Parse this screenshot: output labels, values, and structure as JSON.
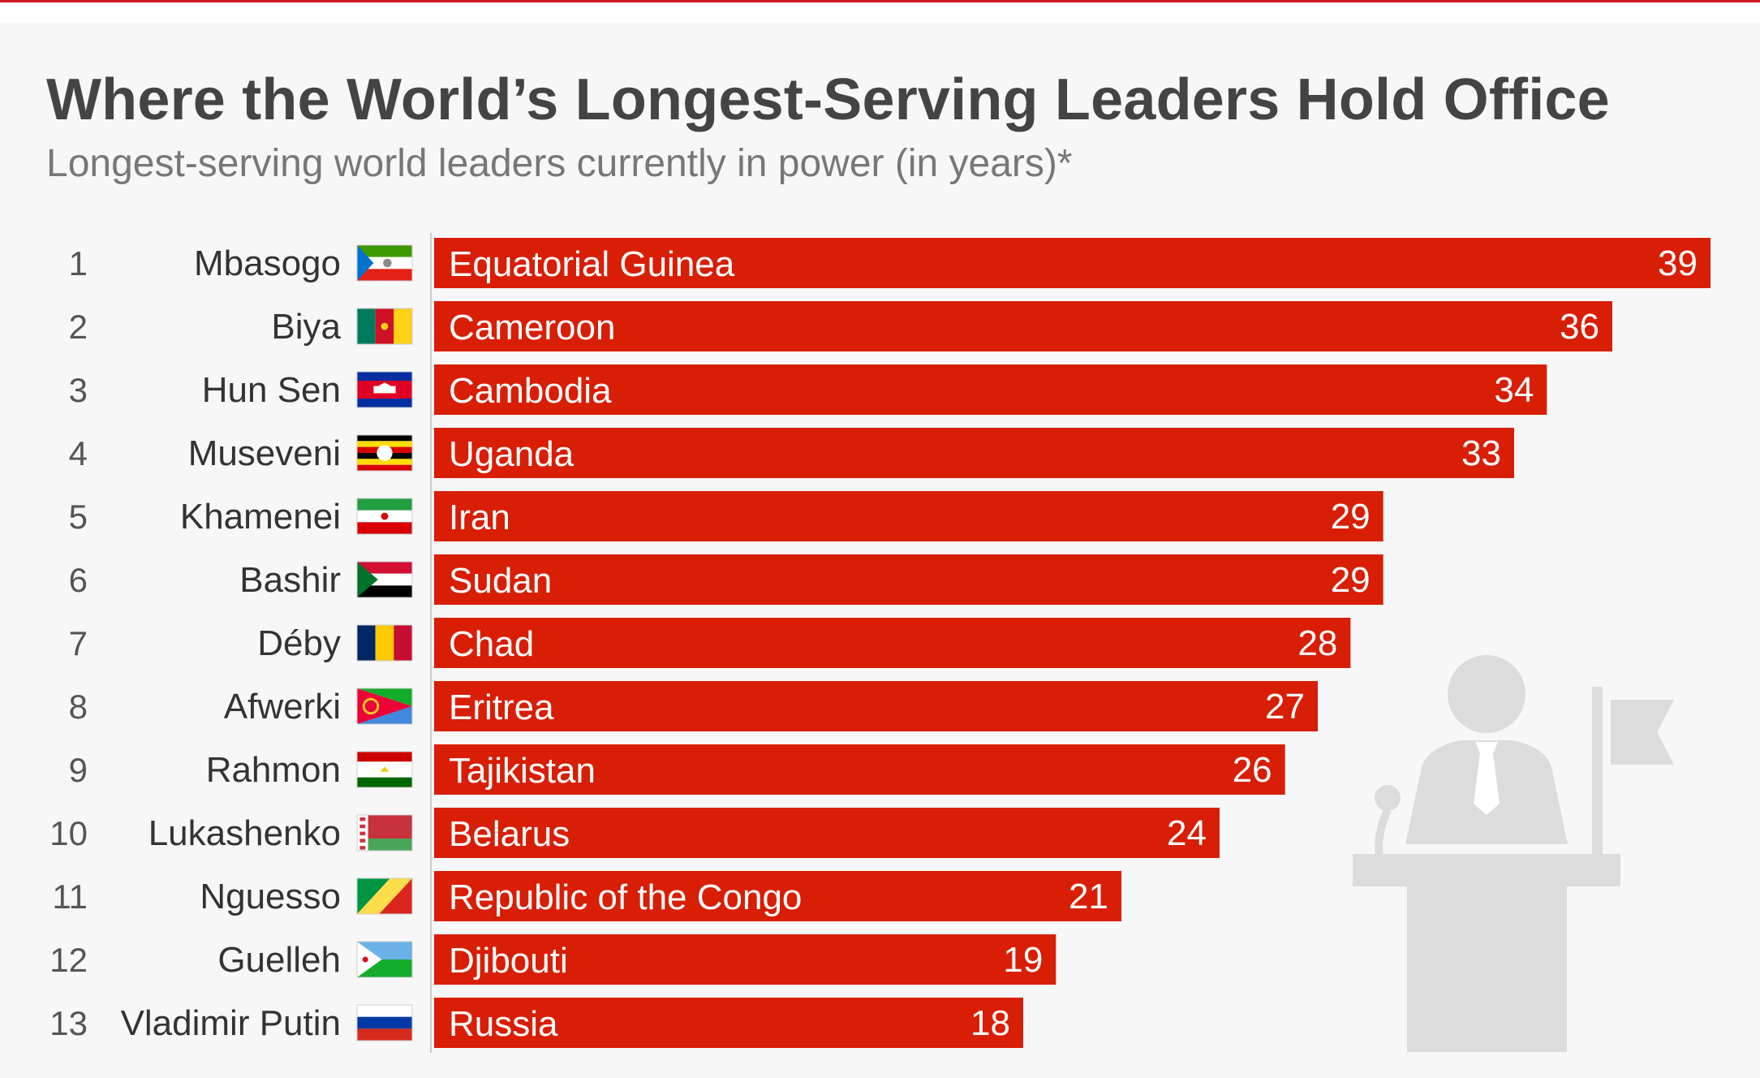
{
  "header": {
    "title": "Where the World’s Longest-Serving Leaders Hold Office",
    "subtitle": "Longest-serving world leaders currently in power (in years)*"
  },
  "colors": {
    "bar": "#d81e05",
    "background": "#f7f7f7",
    "accent_rule": "#d0172a",
    "illustration": "#dcdcdc"
  },
  "illustration": {
    "icon": "leader-at-podium-icon"
  },
  "chart_data": {
    "type": "bar",
    "orientation": "horizontal",
    "title": "Where the World’s Longest-Serving Leaders Hold Office",
    "subtitle": "Longest-serving world leaders currently in power (in years)*",
    "xlim": [
      0,
      39
    ],
    "grid": false,
    "legend": "none",
    "data_labels": true,
    "rows": [
      {
        "rank": "1",
        "leader": "Mbasogo",
        "country": "Equatorial Guinea",
        "value": 39,
        "flag": "equatorial-guinea-flag-icon"
      },
      {
        "rank": "2",
        "leader": "Biya",
        "country": "Cameroon",
        "value": 36,
        "flag": "cameroon-flag-icon"
      },
      {
        "rank": "3",
        "leader": "Hun Sen",
        "country": "Cambodia",
        "value": 34,
        "flag": "cambodia-flag-icon"
      },
      {
        "rank": "4",
        "leader": "Museveni",
        "country": "Uganda",
        "value": 33,
        "flag": "uganda-flag-icon"
      },
      {
        "rank": "5",
        "leader": "Khamenei",
        "country": "Iran",
        "value": 29,
        "flag": "iran-flag-icon"
      },
      {
        "rank": "6",
        "leader": "Bashir",
        "country": "Sudan",
        "value": 29,
        "flag": "sudan-flag-icon"
      },
      {
        "rank": "7",
        "leader": "Déby",
        "country": "Chad",
        "value": 28,
        "flag": "chad-flag-icon"
      },
      {
        "rank": "8",
        "leader": "Afwerki",
        "country": "Eritrea",
        "value": 27,
        "flag": "eritrea-flag-icon"
      },
      {
        "rank": "9",
        "leader": "Rahmon",
        "country": "Tajikistan",
        "value": 26,
        "flag": "tajikistan-flag-icon"
      },
      {
        "rank": "10",
        "leader": "Lukashenko",
        "country": "Belarus",
        "value": 24,
        "flag": "belarus-flag-icon"
      },
      {
        "rank": "11",
        "leader": "Nguesso",
        "country": "Republic of the Congo",
        "value": 21,
        "flag": "congo-flag-icon"
      },
      {
        "rank": "12",
        "leader": "Guelleh",
        "country": "Djibouti",
        "value": 19,
        "flag": "djibouti-flag-icon"
      },
      {
        "rank": "13",
        "leader": "Vladimir Putin",
        "country": "Russia",
        "value": 18,
        "flag": "russia-flag-icon"
      }
    ]
  }
}
